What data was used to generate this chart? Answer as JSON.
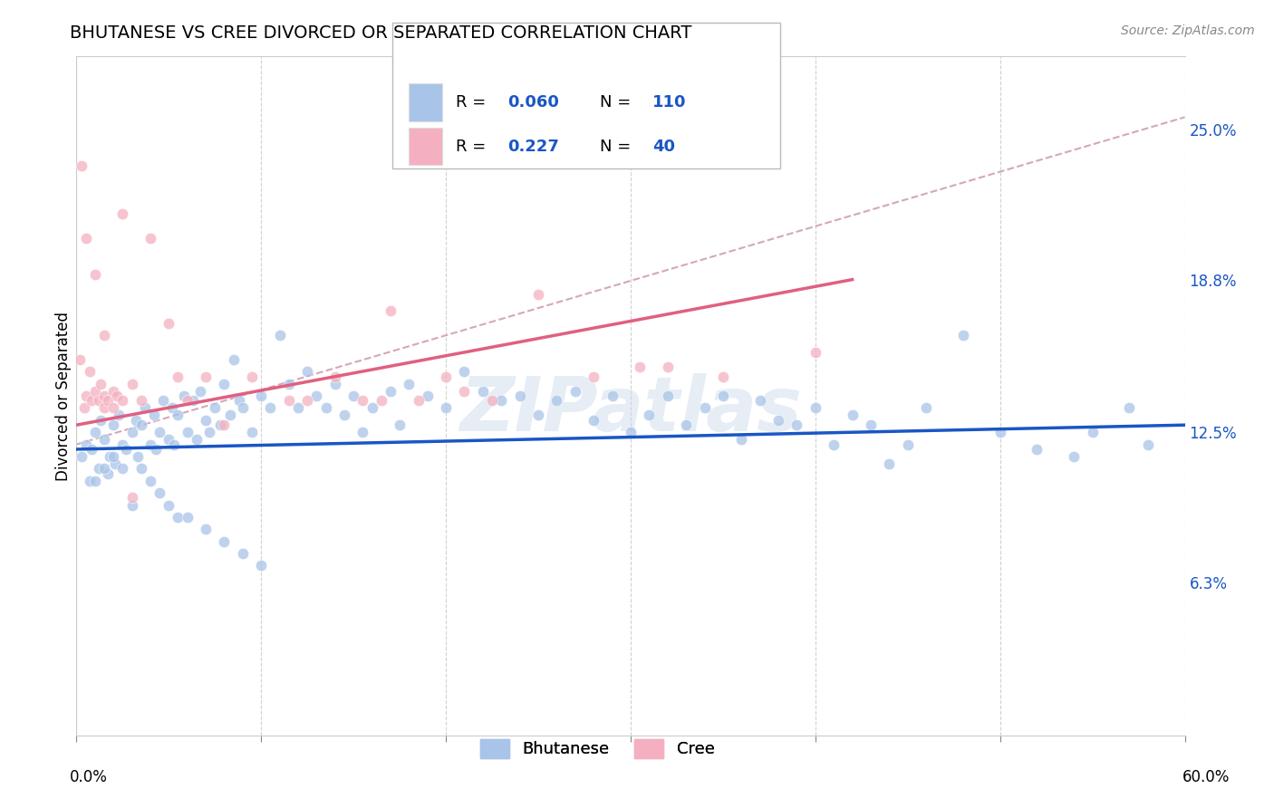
{
  "title": "BHUTANESE VS CREE DIVORCED OR SEPARATED CORRELATION CHART",
  "source": "Source: ZipAtlas.com",
  "ylabel": "Divorced or Separated",
  "ytick_labels": [
    "6.3%",
    "12.5%",
    "18.8%",
    "25.0%"
  ],
  "ytick_values": [
    6.3,
    12.5,
    18.8,
    25.0
  ],
  "xmin": 0.0,
  "xmax": 60.0,
  "ymin": 0.0,
  "ymax": 28.0,
  "watermark": "ZIPatlas",
  "bhutanese_scatter_x": [
    0.3,
    0.5,
    0.7,
    0.8,
    1.0,
    1.2,
    1.3,
    1.5,
    1.7,
    1.8,
    2.0,
    2.1,
    2.3,
    2.5,
    2.7,
    3.0,
    3.2,
    3.3,
    3.5,
    3.7,
    4.0,
    4.2,
    4.3,
    4.5,
    4.7,
    5.0,
    5.2,
    5.3,
    5.5,
    5.8,
    6.0,
    6.3,
    6.5,
    6.7,
    7.0,
    7.2,
    7.5,
    7.8,
    8.0,
    8.3,
    8.5,
    8.8,
    9.0,
    9.5,
    10.0,
    10.5,
    11.0,
    11.5,
    12.0,
    12.5,
    13.0,
    13.5,
    14.0,
    14.5,
    15.0,
    15.5,
    16.0,
    17.0,
    17.5,
    18.0,
    19.0,
    20.0,
    21.0,
    22.0,
    23.0,
    24.0,
    25.0,
    26.0,
    27.0,
    28.0,
    29.0,
    30.0,
    31.0,
    32.0,
    33.0,
    34.0,
    35.0,
    36.0,
    37.0,
    38.0,
    39.0,
    40.0,
    41.0,
    42.0,
    43.0,
    44.0,
    45.0,
    46.0,
    48.0,
    50.0,
    52.0,
    54.0,
    55.0,
    57.0,
    58.0,
    1.0,
    1.5,
    2.0,
    2.5,
    3.0,
    3.5,
    4.0,
    4.5,
    5.0,
    5.5,
    6.0,
    7.0,
    8.0,
    9.0,
    10.0
  ],
  "bhutanese_scatter_y": [
    11.5,
    12.0,
    10.5,
    11.8,
    12.5,
    11.0,
    13.0,
    12.2,
    10.8,
    11.5,
    12.8,
    11.2,
    13.2,
    12.0,
    11.8,
    12.5,
    13.0,
    11.5,
    12.8,
    13.5,
    12.0,
    13.2,
    11.8,
    12.5,
    13.8,
    12.2,
    13.5,
    12.0,
    13.2,
    14.0,
    12.5,
    13.8,
    12.2,
    14.2,
    13.0,
    12.5,
    13.5,
    12.8,
    14.5,
    13.2,
    15.5,
    13.8,
    13.5,
    12.5,
    14.0,
    13.5,
    16.5,
    14.5,
    13.5,
    15.0,
    14.0,
    13.5,
    14.5,
    13.2,
    14.0,
    12.5,
    13.5,
    14.2,
    12.8,
    14.5,
    14.0,
    13.5,
    15.0,
    14.2,
    13.8,
    14.0,
    13.2,
    13.8,
    14.2,
    13.0,
    14.0,
    12.5,
    13.2,
    14.0,
    12.8,
    13.5,
    14.0,
    12.2,
    13.8,
    13.0,
    12.8,
    13.5,
    12.0,
    13.2,
    12.8,
    11.2,
    12.0,
    13.5,
    16.5,
    12.5,
    11.8,
    11.5,
    12.5,
    13.5,
    12.0,
    10.5,
    11.0,
    11.5,
    11.0,
    9.5,
    11.0,
    10.5,
    10.0,
    9.5,
    9.0,
    9.0,
    8.5,
    8.0,
    7.5,
    7.0
  ],
  "cree_scatter_x": [
    0.2,
    0.4,
    0.5,
    0.7,
    0.8,
    1.0,
    1.2,
    1.3,
    1.5,
    1.5,
    1.7,
    2.0,
    2.0,
    2.2,
    2.5,
    3.0,
    3.5,
    4.0,
    5.0,
    5.5,
    6.0,
    7.0,
    8.0,
    9.5,
    11.5,
    12.5,
    14.0,
    15.5,
    16.5,
    17.0,
    18.5,
    20.0,
    21.0,
    22.5,
    25.0,
    28.0,
    30.5,
    32.0,
    35.0,
    40.0
  ],
  "cree_scatter_y": [
    15.5,
    13.5,
    14.0,
    15.0,
    13.8,
    14.2,
    13.8,
    14.5,
    13.5,
    14.0,
    13.8,
    14.2,
    13.5,
    14.0,
    13.8,
    14.5,
    13.8,
    20.5,
    17.0,
    14.8,
    13.8,
    14.8,
    12.8,
    14.8,
    13.8,
    13.8,
    14.8,
    13.8,
    13.8,
    17.5,
    13.8,
    14.8,
    14.2,
    13.8,
    18.2,
    14.8,
    15.2,
    15.2,
    14.8,
    15.8
  ],
  "cree_scatter_x_high": [
    0.3,
    0.5,
    1.0,
    1.5,
    2.5,
    3.0
  ],
  "cree_scatter_y_high": [
    23.5,
    20.5,
    19.0,
    16.5,
    21.5,
    9.8
  ],
  "blue_line_x": [
    0.0,
    60.0
  ],
  "blue_line_y": [
    11.8,
    12.8
  ],
  "pink_line_x": [
    0.0,
    42.0
  ],
  "pink_line_y": [
    12.8,
    18.8
  ],
  "dashed_line_x": [
    0.0,
    60.0
  ],
  "dashed_line_y": [
    12.0,
    25.5
  ],
  "bhutanese_color": "#a8c4e8",
  "cree_color": "#f4b0c0",
  "blue_line_color": "#1a56c4",
  "pink_line_color": "#e06080",
  "dashed_line_color": "#d4a8b8",
  "scatter_size": 80,
  "scatter_alpha": 0.75,
  "title_fontsize": 14,
  "source_fontsize": 10,
  "axis_label_fontsize": 12,
  "tick_fontsize": 12,
  "legend_fontsize": 13
}
